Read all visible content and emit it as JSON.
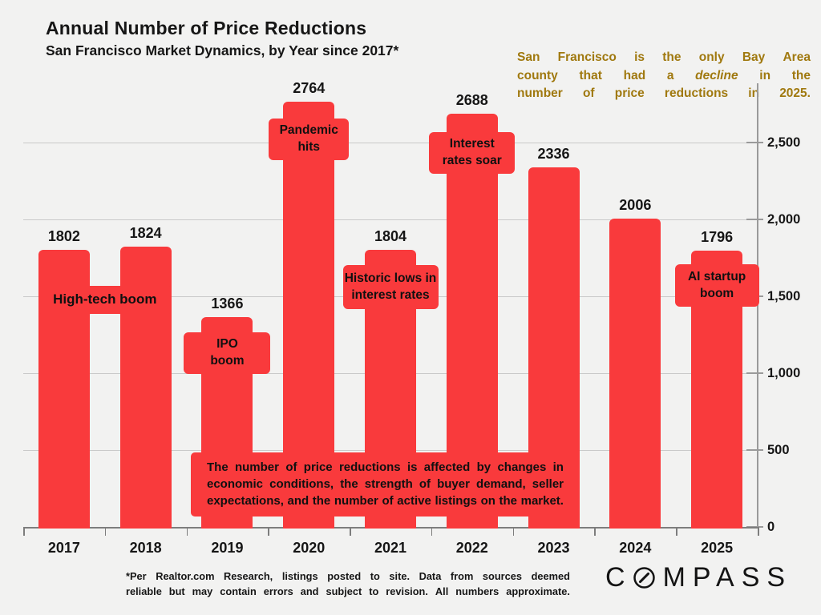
{
  "header": {
    "title": "Annual Number of Price Reductions",
    "subtitle": "San Francisco Market Dynamics, by Year since 2017*"
  },
  "note": {
    "color": "#a0790f",
    "text": "San Francisco is the only Bay Area county that had a decline in the number of price reductions in 2025.",
    "lines": [
      [
        "San",
        "Francisco",
        "is",
        "the",
        "only",
        "Bay",
        "Area"
      ],
      [
        "county",
        "that",
        "had",
        "a",
        {
          "i": "decline"
        },
        "in",
        "the"
      ],
      [
        "number",
        "of",
        "price",
        "reductions",
        "in",
        "2025."
      ]
    ]
  },
  "chart_data": {
    "type": "bar",
    "title": "Annual Number of Price Reductions",
    "subtitle": "San Francisco Market Dynamics, by Year since 2017*",
    "categories": [
      "2017",
      "2018",
      "2019",
      "2020",
      "2021",
      "2022",
      "2023",
      "2024",
      "2025"
    ],
    "values": [
      1802,
      1824,
      1366,
      2764,
      1804,
      2688,
      2336,
      2006,
      1796
    ],
    "bar_color": "#f93a3c",
    "ylim": [
      0,
      2900
    ],
    "yticks": [
      0,
      500,
      1000,
      1500,
      2000,
      2500
    ],
    "ytick_labels": [
      "0",
      "500",
      "1,000",
      "1,500",
      "2,000",
      "2,500"
    ],
    "y_axis_side": "right",
    "grid": true,
    "legend": "none",
    "annotations": [
      {
        "id": "hightech",
        "attach": [
          "2017",
          "2018"
        ],
        "text": "High-tech boom",
        "lines": [
          "High-tech boom"
        ]
      },
      {
        "id": "ipo",
        "attach": [
          "2019"
        ],
        "text": "IPO boom",
        "lines": [
          "IPO",
          "boom"
        ]
      },
      {
        "id": "pandemic",
        "attach": [
          "2020"
        ],
        "text": "Pandemic hits",
        "lines": [
          "Pandemic",
          "hits"
        ]
      },
      {
        "id": "historic",
        "attach": [
          "2021"
        ],
        "text": "Historic lows in interest rates",
        "lines": [
          "Historic lows in",
          "interest rates"
        ]
      },
      {
        "id": "interest",
        "attach": [
          "2022"
        ],
        "text": "Interest rates soar",
        "lines": [
          "Interest",
          "rates soar"
        ]
      },
      {
        "id": "ai",
        "attach": [
          "2025"
        ],
        "text": "AI startup boom",
        "lines": [
          "AI startup",
          "boom"
        ]
      }
    ],
    "info_box": {
      "text": "The number of price reductions is affected by changes in economic conditions, the strength of buyer demand, seller expectations, and the number of active listings on the market.",
      "lines": [
        [
          "The",
          "number",
          "of",
          "price",
          "reductions",
          "is",
          "affected",
          "by",
          "changes",
          "in"
        ],
        [
          "economic",
          "conditions,",
          "the",
          "strength",
          "of",
          "buyer",
          "demand,",
          "seller"
        ],
        [
          "expectations,",
          "and",
          "the",
          "number",
          "of",
          "active",
          "listings",
          "on",
          "the",
          "market."
        ]
      ]
    }
  },
  "footnote": {
    "text": "*Per Realtor.com Research, listings posted to site. Data from sources deemed reliable but may contain errors and subject to revision. All numbers approximate.",
    "lines": [
      [
        "*Per",
        "Realtor.com",
        "Research,",
        "listings",
        "posted",
        "to",
        "site.",
        "Data",
        "from",
        "sources",
        "deemed"
      ],
      [
        "reliable",
        "but",
        "may",
        "contain",
        "errors",
        "and",
        "subject",
        "to",
        "revision.",
        "All",
        "numbers",
        "approximate."
      ]
    ]
  },
  "logo": {
    "text": "COMPASS",
    "letters_before_o": "C",
    "letters_after_o": "MPASS"
  }
}
